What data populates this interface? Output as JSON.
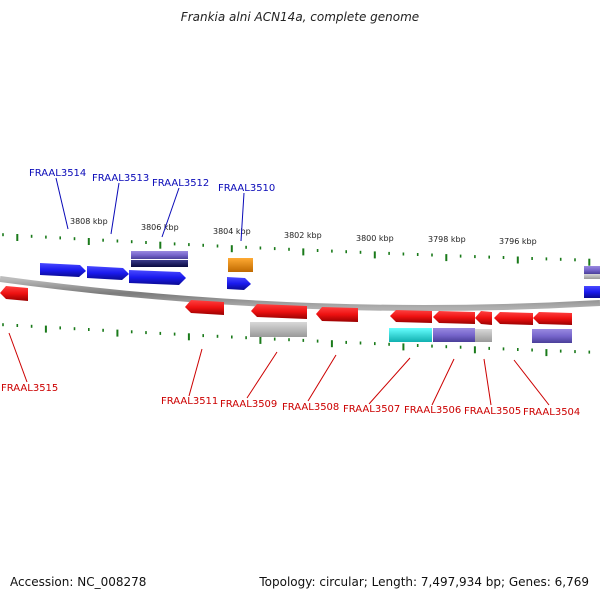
{
  "title": "Frankia alni ACN14a, complete genome",
  "footer": {
    "accession": "Accession: NC_008278",
    "summary": "Topology: circular; Length: 7,497,934 bp; Genes: 6,769"
  },
  "colors": {
    "forward_gene": "#1a1aee",
    "reverse_gene": "#ee1111",
    "forward_label": "#0a0ab8",
    "reverse_label": "#cc0000",
    "tick": "#1a7a1a",
    "backbone": "#808080",
    "orange_feature": "#e8890c",
    "purple_feature": "#7766cc",
    "navy_feature": "#12125a",
    "cyan_feature": "#22dddd",
    "gray_feature": "#b4b4b4"
  },
  "scale_labels": [
    "3808 kbp",
    "3806 kbp",
    "3804 kbp",
    "3802 kbp",
    "3800 kbp",
    "3798 kbp",
    "3796 kbp"
  ],
  "forward_gene_labels": [
    "FRAAL3514",
    "FRAAL3513",
    "FRAAL3512",
    "FRAAL3510"
  ],
  "reverse_gene_labels": [
    "FRAAL3515",
    "FRAAL3511",
    "FRAAL3509",
    "FRAAL3508",
    "FRAAL3507",
    "FRAAL3506",
    "FRAAL3505",
    "FRAAL3504"
  ]
}
